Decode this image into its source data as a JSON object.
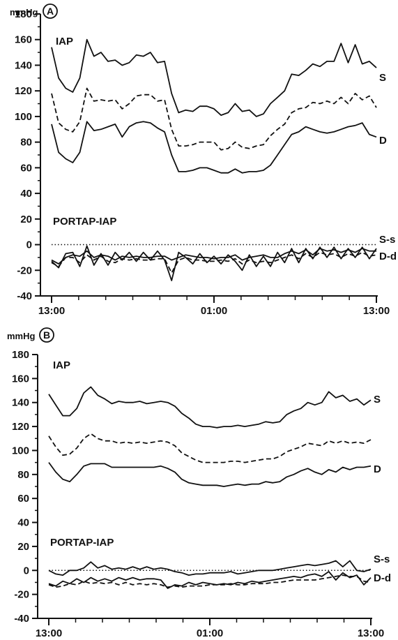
{
  "chart_data": [
    {
      "type": "line",
      "panel_label": "A",
      "ylabel": "mmHg",
      "ylim": [
        -40,
        180
      ],
      "yticks": [
        180,
        160,
        140,
        120,
        100,
        80,
        60,
        40,
        20,
        0,
        -20,
        -40
      ],
      "xticks": [
        "13:00",
        "01:00",
        "13:00"
      ],
      "annotations": [
        "IAP",
        "PORTAP-IAP"
      ],
      "reference_line": 0,
      "series": [
        {
          "name": "S",
          "style": "solid",
          "values": [
            154,
            130,
            122,
            119,
            130,
            160,
            147,
            150,
            143,
            144,
            140,
            142,
            148,
            147,
            150,
            142,
            143,
            118,
            103,
            105,
            104,
            108,
            108,
            106,
            101,
            103,
            110,
            104,
            105,
            100,
            102,
            110,
            115,
            120,
            133,
            132,
            136,
            141,
            139,
            143,
            143,
            157,
            142,
            156,
            141,
            143,
            138
          ]
        },
        {
          "name": "",
          "style": "dashed",
          "values": [
            118,
            95,
            90,
            88,
            96,
            122,
            112,
            113,
            112,
            113,
            106,
            110,
            116,
            117,
            117,
            112,
            113,
            90,
            77,
            77,
            78,
            80,
            80,
            80,
            74,
            75,
            80,
            76,
            75,
            77,
            78,
            85,
            90,
            94,
            103,
            106,
            107,
            111,
            110,
            112,
            110,
            115,
            110,
            118,
            113,
            116,
            107
          ]
        },
        {
          "name": "D",
          "style": "solid",
          "values": [
            94,
            72,
            67,
            64,
            72,
            96,
            89,
            90,
            92,
            94,
            84,
            92,
            95,
            96,
            95,
            91,
            88,
            70,
            57,
            57,
            58,
            60,
            60,
            58,
            56,
            56,
            59,
            56,
            57,
            57,
            58,
            62,
            70,
            78,
            86,
            88,
            92,
            90,
            88,
            87,
            88,
            90,
            92,
            93,
            95,
            86,
            84
          ]
        },
        {
          "name": "S-s",
          "style": "solid",
          "values": [
            -12,
            -15,
            -10,
            -8,
            -9,
            -5,
            -10,
            -8,
            -9,
            -12,
            -9,
            -10,
            -9,
            -10,
            -10,
            -9,
            -9,
            -12,
            -10,
            -8,
            -9,
            -10,
            -10,
            -11,
            -10,
            -10,
            -8,
            -12,
            -10,
            -9,
            -8,
            -10,
            -10,
            -7,
            -5,
            -7,
            -4,
            -8,
            -3,
            -5,
            -4,
            -6,
            -4,
            -6,
            -3,
            -5,
            -5
          ]
        },
        {
          "name": "",
          "style": "dashed",
          "values": [
            -14,
            -17,
            -10,
            -10,
            -14,
            -8,
            -12,
            -9,
            -13,
            -14,
            -11,
            -12,
            -11,
            -12,
            -12,
            -11,
            -11,
            -22,
            -12,
            -10,
            -12,
            -12,
            -13,
            -13,
            -12,
            -13,
            -11,
            -15,
            -12,
            -14,
            -13,
            -14,
            -12,
            -10,
            -8,
            -11,
            -7,
            -10,
            -6,
            -8,
            -7,
            -10,
            -7,
            -9,
            -6,
            -9,
            -8
          ]
        },
        {
          "name": "D-d",
          "style": "solid",
          "values": [
            -13,
            -18,
            -7,
            -6,
            -17,
            -1,
            -16,
            -7,
            -16,
            -6,
            -12,
            -6,
            -13,
            -6,
            -12,
            -5,
            -12,
            -28,
            -6,
            -10,
            -15,
            -7,
            -14,
            -9,
            -15,
            -8,
            -13,
            -20,
            -8,
            -17,
            -9,
            -17,
            -6,
            -14,
            -3,
            -14,
            -3,
            -11,
            -2,
            -10,
            -2,
            -11,
            -3,
            -10,
            -2,
            -11,
            -3
          ]
        }
      ]
    },
    {
      "type": "line",
      "panel_label": "B",
      "ylabel": "mmHg",
      "ylim": [
        -40,
        180
      ],
      "yticks": [
        180,
        160,
        140,
        120,
        100,
        80,
        60,
        40,
        20,
        0,
        -20,
        -40
      ],
      "xticks": [
        "13:00",
        "01:00",
        "13:00"
      ],
      "annotations": [
        "IAP",
        "PORTAP-IAP"
      ],
      "reference_line": 0,
      "series": [
        {
          "name": "S",
          "style": "solid",
          "values": [
            147,
            138,
            129,
            129,
            135,
            148,
            153,
            146,
            143,
            139,
            141,
            140,
            140,
            141,
            139,
            140,
            141,
            140,
            137,
            131,
            127,
            122,
            120,
            120,
            119,
            120,
            120,
            121,
            120,
            121,
            122,
            124,
            123,
            124,
            130,
            133,
            135,
            140,
            138,
            140,
            149,
            144,
            146,
            141,
            143,
            138,
            142
          ]
        },
        {
          "name": "",
          "style": "dashed",
          "values": [
            112,
            103,
            96,
            97,
            102,
            110,
            114,
            110,
            108,
            108,
            106,
            107,
            106,
            107,
            106,
            107,
            108,
            107,
            104,
            98,
            95,
            92,
            90,
            90,
            90,
            90,
            91,
            91,
            90,
            91,
            92,
            93,
            93,
            95,
            99,
            101,
            103,
            106,
            105,
            104,
            108,
            106,
            108,
            106,
            107,
            106,
            109
          ]
        },
        {
          "name": "D",
          "style": "solid",
          "values": [
            90,
            82,
            76,
            74,
            80,
            87,
            89,
            89,
            89,
            86,
            86,
            86,
            86,
            86,
            86,
            86,
            87,
            85,
            82,
            76,
            73,
            72,
            71,
            71,
            71,
            70,
            71,
            72,
            71,
            72,
            72,
            74,
            73,
            74,
            78,
            80,
            83,
            85,
            82,
            80,
            84,
            82,
            86,
            84,
            86,
            86,
            87
          ]
        },
        {
          "name": "S-s",
          "style": "solid",
          "values": [
            0,
            -3,
            -4,
            0,
            0,
            2,
            7,
            2,
            4,
            1,
            2,
            1,
            3,
            1,
            3,
            1,
            2,
            1,
            -1,
            -2,
            -4,
            -3,
            -3,
            -2,
            -2,
            -2,
            -1,
            -3,
            -2,
            -1,
            0,
            0,
            0,
            1,
            2,
            3,
            4,
            5,
            4,
            5,
            6,
            8,
            3,
            8,
            0,
            -1,
            1
          ]
        },
        {
          "name": "",
          "style": "dashed",
          "values": [
            -12,
            -14,
            -13,
            -11,
            -12,
            -9,
            -11,
            -10,
            -11,
            -10,
            -12,
            -10,
            -12,
            -11,
            -12,
            -11,
            -12,
            -14,
            -13,
            -14,
            -13,
            -13,
            -13,
            -12,
            -12,
            -12,
            -11,
            -12,
            -12,
            -11,
            -11,
            -11,
            -10,
            -10,
            -9,
            -8,
            -8,
            -8,
            -8,
            -7,
            -6,
            -5,
            -4,
            -5,
            -5,
            -9,
            -10
          ]
        },
        {
          "name": "D-d",
          "style": "solid",
          "values": [
            -11,
            -13,
            -9,
            -11,
            -7,
            -10,
            -6,
            -9,
            -7,
            -9,
            -6,
            -8,
            -6,
            -8,
            -7,
            -7,
            -8,
            -15,
            -12,
            -13,
            -10,
            -12,
            -10,
            -11,
            -12,
            -11,
            -12,
            -10,
            -11,
            -9,
            -10,
            -9,
            -8,
            -7,
            -6,
            -5,
            -6,
            -4,
            -3,
            -5,
            -1,
            -8,
            -2,
            -6,
            -4,
            -12,
            -6
          ]
        }
      ]
    }
  ]
}
